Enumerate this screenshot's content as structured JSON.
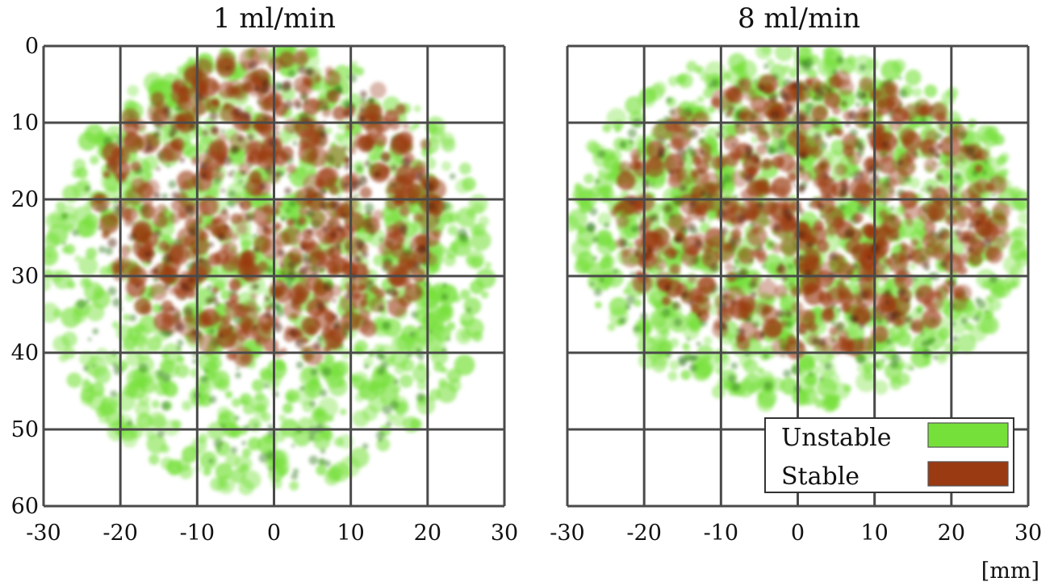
{
  "figure": {
    "unit_label": "[mm]",
    "legend": [
      {
        "label": "Unstable",
        "color": "#76e03a"
      },
      {
        "label": "Stable",
        "color": "#9a3a12"
      }
    ]
  },
  "chart_data": [
    {
      "type": "heatmap",
      "title": "1 ml/min",
      "x_ticks": [
        "-30",
        "-20",
        "-10",
        "0",
        "10",
        "20",
        "30"
      ],
      "y_ticks": [
        "0",
        "10",
        "20",
        "30",
        "40",
        "50",
        "60"
      ],
      "xlim": [
        -30,
        30
      ],
      "ylim": [
        0,
        60
      ],
      "y_inverted": true,
      "grid": true,
      "regions": [
        {
          "name": "Unstable",
          "extent_x": [
            -30,
            28
          ],
          "extent_y": [
            0,
            58
          ]
        },
        {
          "name": "Stable",
          "extent_x": [
            -23,
            22
          ],
          "extent_y": [
            1,
            41
          ]
        }
      ]
    },
    {
      "type": "heatmap",
      "title": "8 ml/min",
      "x_ticks": [
        "-30",
        "-20",
        "-10",
        "0",
        "10",
        "20",
        "30"
      ],
      "y_ticks": [],
      "xlim": [
        -30,
        30
      ],
      "ylim": [
        0,
        60
      ],
      "y_inverted": true,
      "grid": true,
      "legend_position": "bottom-right",
      "regions": [
        {
          "name": "Unstable",
          "extent_x": [
            -30,
            30
          ],
          "extent_y": [
            0,
            47
          ]
        },
        {
          "name": "Stable",
          "extent_x": [
            -24,
            27
          ],
          "extent_y": [
            4,
            40
          ]
        }
      ]
    }
  ]
}
